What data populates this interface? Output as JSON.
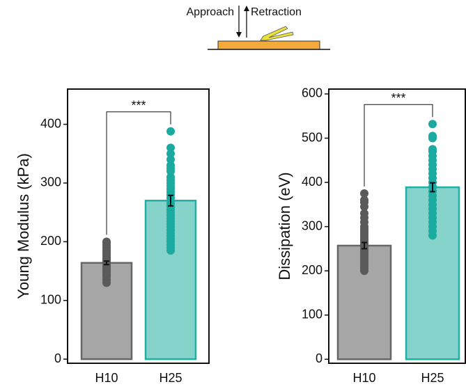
{
  "schematic": {
    "approach": "Approach",
    "retraction": "Retraction"
  },
  "chart_data": [
    {
      "type": "bar",
      "ylabel": "Young Modulus (kPa)",
      "categories": [
        "H10",
        "H25"
      ],
      "values": [
        164,
        270
      ],
      "errors": [
        3,
        9
      ],
      "colors": [
        "#a6a6a6",
        "#86d3cc"
      ],
      "edge_colors": [
        "#666666",
        "#1fb0a4"
      ],
      "point_colors": [
        "#5a5a5a",
        "#1aaa9f"
      ],
      "points": [
        [
          130,
          135,
          140,
          143,
          146,
          150,
          152,
          155,
          157,
          160,
          162,
          165,
          167,
          170,
          172,
          175,
          178,
          180,
          183,
          186,
          190,
          194,
          198,
          200
        ],
        [
          185,
          190,
          195,
          200,
          205,
          210,
          215,
          220,
          225,
          230,
          235,
          240,
          245,
          250,
          255,
          260,
          265,
          270,
          275,
          280,
          285,
          290,
          295,
          300,
          305,
          310,
          320,
          325,
          330,
          340,
          350,
          360,
          388
        ]
      ],
      "significance": "***",
      "ylim": [
        -7,
        460
      ],
      "yticks": [
        0,
        100,
        200,
        300,
        400
      ]
    },
    {
      "type": "bar",
      "ylabel": "Dissipation (eV)",
      "categories": [
        "H10",
        "H25"
      ],
      "values": [
        257,
        389
      ],
      "errors": [
        7,
        10
      ],
      "colors": [
        "#a6a6a6",
        "#86d3cc"
      ],
      "edge_colors": [
        "#666666",
        "#1fb0a4"
      ],
      "point_colors": [
        "#5a5a5a",
        "#1aaa9f"
      ],
      "points": [
        [
          200,
          205,
          210,
          215,
          220,
          225,
          230,
          235,
          240,
          245,
          250,
          255,
          260,
          265,
          270,
          275,
          280,
          285,
          290,
          295,
          300,
          310,
          320,
          330,
          345,
          355,
          360,
          375
        ],
        [
          280,
          290,
          300,
          310,
          320,
          330,
          340,
          350,
          360,
          370,
          380,
          390,
          400,
          410,
          420,
          430,
          440,
          450,
          460,
          470,
          475,
          500,
          505,
          532
        ]
      ],
      "significance": "***",
      "ylim": [
        -9,
        611
      ],
      "yticks": [
        0,
        100,
        200,
        300,
        400,
        500,
        600
      ]
    }
  ]
}
